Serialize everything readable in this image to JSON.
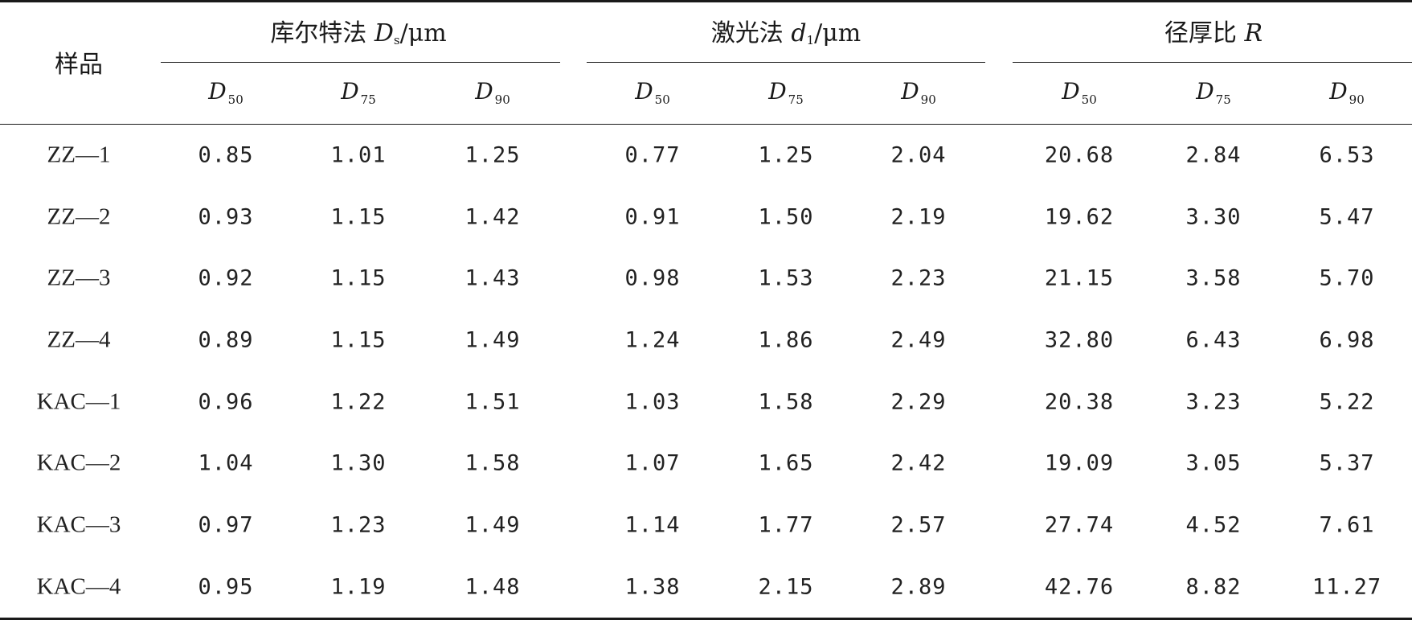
{
  "table": {
    "corner_label": "样品",
    "groups": [
      {
        "name": "库尔特法",
        "symbol": "D",
        "symbol_sub": "s",
        "unit": "/μm"
      },
      {
        "name": "激光法",
        "symbol": "d",
        "symbol_sub": "1",
        "unit": "/μm"
      },
      {
        "name": "径厚比",
        "symbol": "R",
        "symbol_sub": "",
        "unit": ""
      }
    ],
    "sub_columns": [
      {
        "base": "D",
        "sub": "50"
      },
      {
        "base": "D",
        "sub": "75"
      },
      {
        "base": "D",
        "sub": "90"
      }
    ],
    "rows": [
      {
        "sample": "ZZ—1",
        "values": [
          "0.85",
          "1.01",
          "1.25",
          "0.77",
          "1.25",
          "2.04",
          "20.68",
          "2.84",
          "6.53"
        ]
      },
      {
        "sample": "ZZ—2",
        "values": [
          "0.93",
          "1.15",
          "1.42",
          "0.91",
          "1.50",
          "2.19",
          "19.62",
          "3.30",
          "5.47"
        ]
      },
      {
        "sample": "ZZ—3",
        "values": [
          "0.92",
          "1.15",
          "1.43",
          "0.98",
          "1.53",
          "2.23",
          "21.15",
          "3.58",
          "5.70"
        ]
      },
      {
        "sample": "ZZ—4",
        "values": [
          "0.89",
          "1.15",
          "1.49",
          "1.24",
          "1.86",
          "2.49",
          "32.80",
          "6.43",
          "6.98"
        ]
      },
      {
        "sample": "KAC—1",
        "values": [
          "0.96",
          "1.22",
          "1.51",
          "1.03",
          "1.58",
          "2.29",
          "20.38",
          "3.23",
          "5.22"
        ]
      },
      {
        "sample": "KAC—2",
        "values": [
          "1.04",
          "1.30",
          "1.58",
          "1.07",
          "1.65",
          "2.42",
          "19.09",
          "3.05",
          "5.37"
        ]
      },
      {
        "sample": "KAC—3",
        "values": [
          "0.97",
          "1.23",
          "1.49",
          "1.14",
          "1.77",
          "2.57",
          "27.74",
          "4.52",
          "7.61"
        ]
      },
      {
        "sample": "KAC—4",
        "values": [
          "0.95",
          "1.19",
          "1.48",
          "1.38",
          "2.15",
          "2.89",
          "42.76",
          "8.82",
          "11.27"
        ]
      }
    ]
  }
}
